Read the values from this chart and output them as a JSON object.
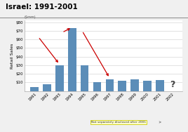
{
  "title": "Israel: 1991-2001",
  "ylabel": "Retail Sales",
  "yunits": "($mm)",
  "ylim": [
    0,
    82
  ],
  "yticks": [
    10,
    20,
    30,
    40,
    50,
    60,
    70,
    80
  ],
  "ytick_labels": [
    "$10",
    "$20",
    "$30",
    "$40",
    "$50",
    "$60",
    "$70",
    "$80"
  ],
  "years": [
    1991,
    1992,
    1993,
    1994,
    1995,
    1996,
    1997,
    1998,
    1999,
    2000,
    2001,
    2002
  ],
  "values": [
    5,
    8,
    30,
    73,
    30,
    10,
    14,
    12,
    14,
    12,
    13,
    0
  ],
  "bar_color": "#5b8db8",
  "arrow_color": "#cc0000",
  "note_text": "Not separately disclosed after 2001",
  "note_bg": "#ffffcc",
  "note_edge": "#cccc00",
  "background_color": "#f0f0f0",
  "plot_bg": "#ffffff",
  "title_fontsize": 7.5,
  "tick_fontsize": 4.0,
  "ylabel_fontsize": 4.5,
  "yunits_fontsize": 3.5,
  "note_fontsize": 3.2,
  "qmark_fontsize": 9
}
